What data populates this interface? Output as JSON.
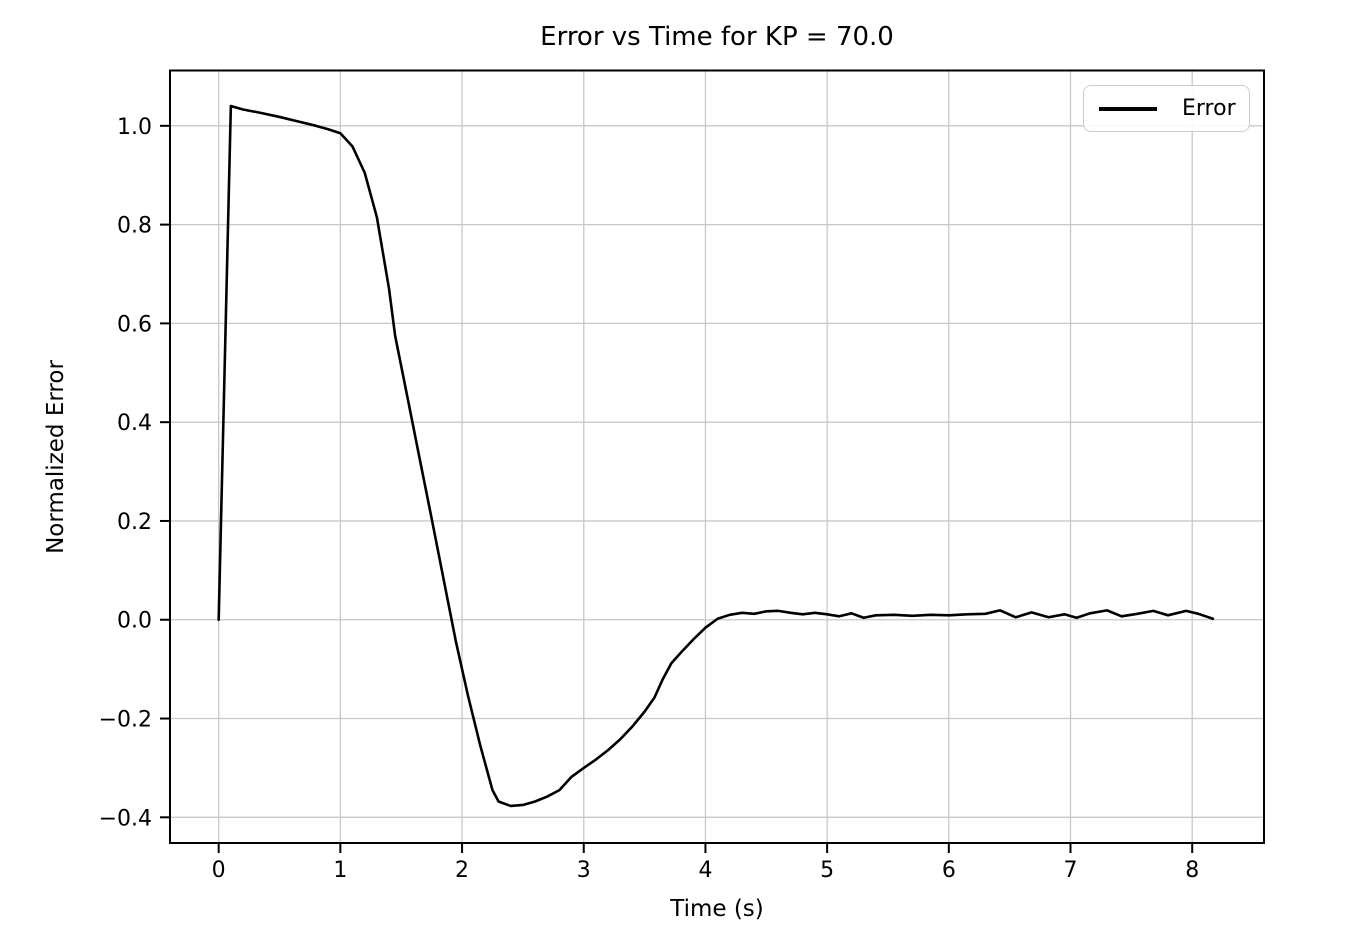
{
  "figure": {
    "background": "#ffffff"
  },
  "chart_data": {
    "type": "line",
    "title": "Error vs Time for KP = 70.0",
    "xlabel": "Time (s)",
    "ylabel": "Normalized Error",
    "grid": true,
    "legend": {
      "position": "upper right",
      "entries": [
        {
          "label": "Error",
          "color": "#000000"
        }
      ]
    },
    "xlim": [
      -0.4,
      8.59
    ],
    "ylim": [
      -0.452,
      1.112
    ],
    "xticks": {
      "values": [
        0,
        1,
        2,
        3,
        4,
        5,
        6,
        7,
        8
      ],
      "labels": [
        "0",
        "1",
        "2",
        "3",
        "4",
        "5",
        "6",
        "7",
        "8"
      ]
    },
    "yticks": {
      "values": [
        1.0,
        0.8,
        0.6,
        0.4,
        0.2,
        0.0,
        -0.2,
        -0.4
      ],
      "labels": [
        "1.0",
        "0.8",
        "0.6",
        "0.4",
        "0.2",
        "0.0",
        "−0.2",
        "−0.4"
      ]
    },
    "colors": {
      "plot_background": "#ffffff",
      "grid": "#c8c8c8",
      "spine": "#000000",
      "text": "#000000",
      "line": "#000000"
    },
    "series": [
      {
        "name": "Error",
        "color": "#000000",
        "linewidth": 2.6,
        "x": [
          0.0,
          0.1,
          0.2,
          0.35,
          0.5,
          0.65,
          0.8,
          0.9,
          1.0,
          1.1,
          1.2,
          1.3,
          1.4,
          1.45,
          1.55,
          1.65,
          1.75,
          1.85,
          1.95,
          2.05,
          2.15,
          2.25,
          2.3,
          2.4,
          2.5,
          2.6,
          2.7,
          2.8,
          2.9,
          3.0,
          3.1,
          3.2,
          3.3,
          3.4,
          3.5,
          3.58,
          3.65,
          3.72,
          3.8,
          3.9,
          4.0,
          4.1,
          4.2,
          4.3,
          4.4,
          4.5,
          4.6,
          4.7,
          4.8,
          4.9,
          5.0,
          5.1,
          5.2,
          5.3,
          5.4,
          5.55,
          5.7,
          5.85,
          6.0,
          6.15,
          6.3,
          6.42,
          6.55,
          6.68,
          6.82,
          6.95,
          7.05,
          7.16,
          7.3,
          7.42,
          7.55,
          7.68,
          7.8,
          7.95,
          8.05,
          8.17
        ],
        "y": [
          0.0,
          1.04,
          1.033,
          1.026,
          1.018,
          1.009,
          1.0,
          0.993,
          0.985,
          0.958,
          0.905,
          0.815,
          0.67,
          0.575,
          0.452,
          0.328,
          0.205,
          0.08,
          -0.045,
          -0.155,
          -0.255,
          -0.345,
          -0.368,
          -0.377,
          -0.375,
          -0.368,
          -0.358,
          -0.345,
          -0.318,
          -0.3,
          -0.283,
          -0.264,
          -0.242,
          -0.216,
          -0.186,
          -0.158,
          -0.12,
          -0.088,
          -0.066,
          -0.04,
          -0.016,
          0.002,
          0.01,
          0.014,
          0.012,
          0.017,
          0.018,
          0.014,
          0.011,
          0.014,
          0.011,
          0.007,
          0.013,
          0.004,
          0.009,
          0.01,
          0.008,
          0.01,
          0.009,
          0.011,
          0.012,
          0.019,
          0.005,
          0.015,
          0.005,
          0.011,
          0.004,
          0.013,
          0.019,
          0.007,
          0.012,
          0.018,
          0.009,
          0.018,
          0.012,
          0.002
        ]
      }
    ]
  }
}
